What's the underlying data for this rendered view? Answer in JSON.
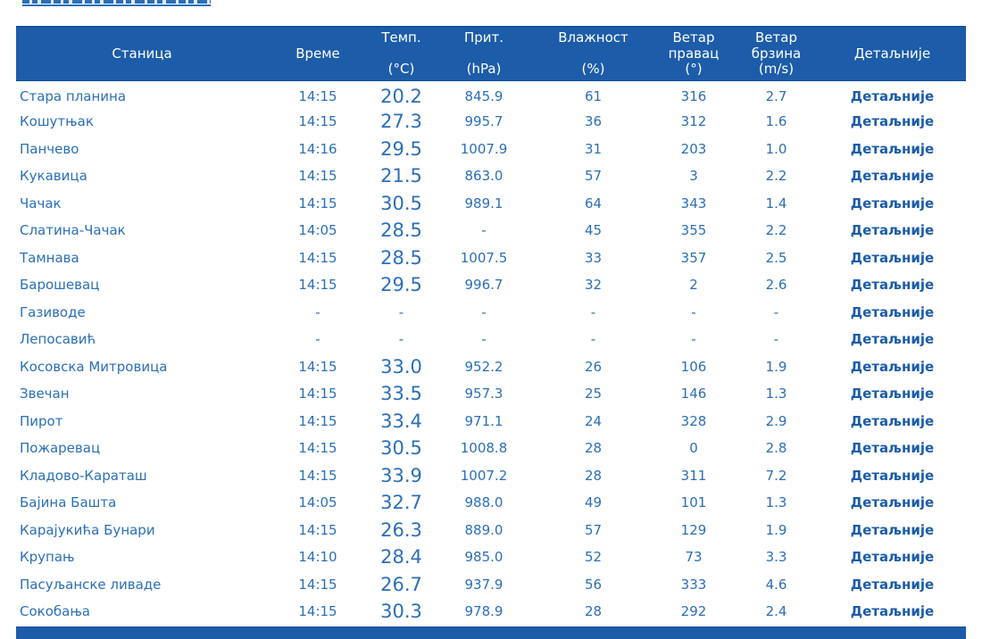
{
  "colors": {
    "header_bg": "#1d5ca9",
    "header_text": "#ffffff",
    "row_text": "#2b6fb7",
    "details_link": "#1b5ca8"
  },
  "table": {
    "header": {
      "station": "Станица",
      "time": "Време",
      "temp_title": "Темп.",
      "temp_unit": "(°C)",
      "pressure_title": "Прит.",
      "pressure_unit": "(hPa)",
      "humidity_title": "Влажност",
      "humidity_unit": "(%)",
      "wind_dir_title": "Ветар",
      "wind_dir_sub": "правац",
      "wind_dir_unit": "(°)",
      "wind_speed_title": "Ветар",
      "wind_speed_sub": "брзина",
      "wind_speed_unit": "(m/s)",
      "details": "Детаљније"
    },
    "details_label": "Детаљније",
    "rows": [
      {
        "station": "Стара планина",
        "time": "14:15",
        "temp": "20.2",
        "pressure": "845.9",
        "humidity": "61",
        "wind_direction": "316",
        "wind_speed": "2.7"
      },
      {
        "station": "Кошутњак",
        "time": "14:15",
        "temp": "27.3",
        "pressure": "995.7",
        "humidity": "36",
        "wind_direction": "312",
        "wind_speed": "1.6"
      },
      {
        "station": "Панчево",
        "time": "14:16",
        "temp": "29.5",
        "pressure": "1007.9",
        "humidity": "31",
        "wind_direction": "203",
        "wind_speed": "1.0"
      },
      {
        "station": "Кукавица",
        "time": "14:15",
        "temp": "21.5",
        "pressure": "863.0",
        "humidity": "57",
        "wind_direction": "3",
        "wind_speed": "2.2"
      },
      {
        "station": "Чачак",
        "time": "14:15",
        "temp": "30.5",
        "pressure": "989.1",
        "humidity": "64",
        "wind_direction": "343",
        "wind_speed": "1.4"
      },
      {
        "station": "Слатина-Чачак",
        "time": "14:05",
        "temp": "28.5",
        "pressure": "-",
        "humidity": "45",
        "wind_direction": "355",
        "wind_speed": "2.2"
      },
      {
        "station": "Тамнава",
        "time": "14:15",
        "temp": "28.5",
        "pressure": "1007.5",
        "humidity": "33",
        "wind_direction": "357",
        "wind_speed": "2.5"
      },
      {
        "station": "Барошевац",
        "time": "14:15",
        "temp": "29.5",
        "pressure": "996.7",
        "humidity": "32",
        "wind_direction": "2",
        "wind_speed": "2.6"
      },
      {
        "station": "Газиводе",
        "time": "-",
        "temp": "-",
        "pressure": "-",
        "humidity": "-",
        "wind_direction": "-",
        "wind_speed": "-"
      },
      {
        "station": "Лепосавић",
        "time": "-",
        "temp": "-",
        "pressure": "-",
        "humidity": "-",
        "wind_direction": "-",
        "wind_speed": "-"
      },
      {
        "station": "Косовска Митровица",
        "time": "14:15",
        "temp": "33.0",
        "pressure": "952.2",
        "humidity": "26",
        "wind_direction": "106",
        "wind_speed": "1.9"
      },
      {
        "station": "Звечан",
        "time": "14:15",
        "temp": "33.5",
        "pressure": "957.3",
        "humidity": "25",
        "wind_direction": "146",
        "wind_speed": "1.3"
      },
      {
        "station": "Пирот",
        "time": "14:15",
        "temp": "33.4",
        "pressure": "971.1",
        "humidity": "24",
        "wind_direction": "328",
        "wind_speed": "2.9"
      },
      {
        "station": "Пожаревац",
        "time": "14:15",
        "temp": "30.5",
        "pressure": "1008.8",
        "humidity": "28",
        "wind_direction": "0",
        "wind_speed": "2.8"
      },
      {
        "station": "Кладово-Караташ",
        "time": "14:15",
        "temp": "33.9",
        "pressure": "1007.2",
        "humidity": "28",
        "wind_direction": "311",
        "wind_speed": "7.2"
      },
      {
        "station": "Бајина Башта",
        "time": "14:05",
        "temp": "32.7",
        "pressure": "988.0",
        "humidity": "49",
        "wind_direction": "101",
        "wind_speed": "1.3"
      },
      {
        "station": "Карајукића Бунари",
        "time": "14:15",
        "temp": "26.3",
        "pressure": "889.0",
        "humidity": "57",
        "wind_direction": "129",
        "wind_speed": "1.9"
      },
      {
        "station": "Крупањ",
        "time": "14:10",
        "temp": "28.4",
        "pressure": "985.0",
        "humidity": "52",
        "wind_direction": "73",
        "wind_speed": "3.3"
      },
      {
        "station": "Пасуљанске ливаде",
        "time": "14:15",
        "temp": "26.7",
        "pressure": "937.9",
        "humidity": "56",
        "wind_direction": "333",
        "wind_speed": "4.6"
      },
      {
        "station": "Сокобања",
        "time": "14:15",
        "temp": "30.3",
        "pressure": "978.9",
        "humidity": "28",
        "wind_direction": "292",
        "wind_speed": "2.4"
      }
    ]
  }
}
